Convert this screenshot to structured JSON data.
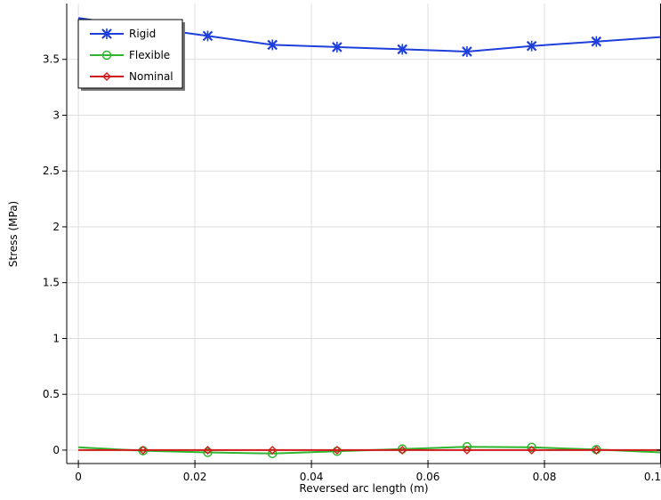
{
  "chart_data": {
    "type": "line",
    "title": "",
    "xlabel": "Reversed arc length (m)",
    "ylabel": "Stress (MPa)",
    "xlim": [
      -0.002,
      0.1
    ],
    "ylim": [
      -0.12,
      4.0
    ],
    "x_ticks": [
      0,
      0.02,
      0.04,
      0.06,
      0.08,
      0.1
    ],
    "x_tick_labels": [
      "0",
      "0.02",
      "0.04",
      "0.06",
      "0.08",
      "0.1"
    ],
    "y_ticks": [
      0,
      0.5,
      1,
      1.5,
      2,
      2.5,
      3,
      3.5
    ],
    "y_tick_labels": [
      "0",
      "0.5",
      "1",
      "1.5",
      "2",
      "2.5",
      "3",
      "3.5"
    ],
    "grid": true,
    "legend_position": "top-left",
    "series": [
      {
        "name": "Rigid",
        "color": "#1f3fdb",
        "marker": "x-star",
        "x": [
          0,
          0.0111,
          0.0222,
          0.0333,
          0.0444,
          0.0556,
          0.0667,
          0.0778,
          0.0889,
          0.1
        ],
        "y": [
          3.87,
          3.79,
          3.71,
          3.63,
          3.61,
          3.59,
          3.57,
          3.62,
          3.66,
          3.7
        ],
        "marker_x": [
          0.0222,
          0.0333,
          0.0444,
          0.0556,
          0.0667,
          0.0778,
          0.0889
        ]
      },
      {
        "name": "Flexible",
        "color": "#2fb52f",
        "marker": "circle",
        "x": [
          0,
          0.0111,
          0.0222,
          0.0333,
          0.0444,
          0.0556,
          0.0667,
          0.0778,
          0.0889,
          0.1
        ],
        "y": [
          0.025,
          -0.005,
          -0.02,
          -0.03,
          -0.01,
          0.01,
          0.03,
          0.025,
          0.005,
          -0.02
        ],
        "marker_x": [
          0.0111,
          0.0222,
          0.0333,
          0.0444,
          0.0556,
          0.0667,
          0.0778,
          0.0889
        ]
      },
      {
        "name": "Nominal",
        "color": "#d01818",
        "marker": "diamond",
        "x": [
          0,
          0.0111,
          0.0222,
          0.0333,
          0.0444,
          0.0556,
          0.0667,
          0.0778,
          0.0889,
          0.1
        ],
        "y": [
          0,
          0,
          0,
          0,
          0,
          0,
          0,
          0,
          0,
          0
        ],
        "marker_x": [
          0.0111,
          0.0222,
          0.0333,
          0.0444,
          0.0556,
          0.0667,
          0.0778,
          0.0889
        ]
      }
    ]
  }
}
